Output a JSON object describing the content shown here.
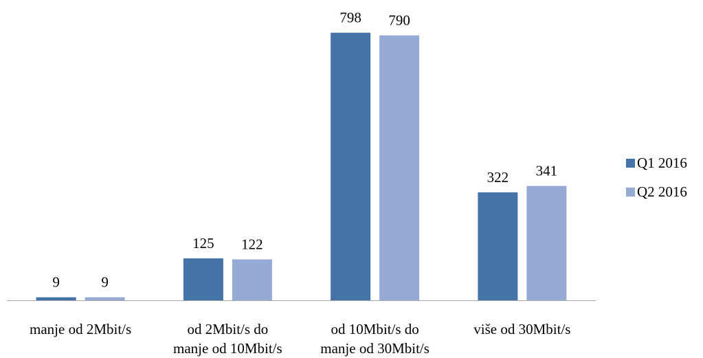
{
  "chart_data": {
    "type": "bar",
    "categories": [
      [
        "manje od 2Mbit/s"
      ],
      [
        "od 2Mbit/s do",
        "manje od 10Mbit/s"
      ],
      [
        "od 10Mbit/s do",
        "manje od 30Mbit/s"
      ],
      [
        "više od 30Mbit/s"
      ]
    ],
    "series": [
      {
        "name": "Q1 2016",
        "values": [
          9,
          125,
          798,
          322
        ],
        "color": "#4572A7"
      },
      {
        "name": "Q2 2016",
        "values": [
          9,
          122,
          790,
          341
        ],
        "color": "#95ABD3"
      }
    ],
    "ylim": [
      0,
      830
    ],
    "grid": false,
    "legend": "right",
    "axis_color": "#A6A6A6"
  }
}
